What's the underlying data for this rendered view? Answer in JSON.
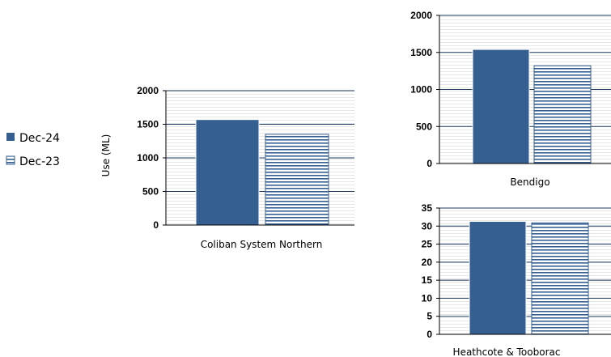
{
  "legend": {
    "placement": "left",
    "items": [
      {
        "label": "Dec-24",
        "color": "#365f91",
        "pattern": "solid"
      },
      {
        "label": "Dec-23",
        "color": "#365f91",
        "pattern": "horizontal-lines"
      }
    ]
  },
  "chart_data": [
    {
      "type": "bar",
      "title": "",
      "xlabel": "Coliban System Northern",
      "ylabel": "Use  (ML)",
      "ylim": [
        0,
        2000
      ],
      "yticks": [
        "0",
        "500",
        "1000",
        "1500",
        "2000"
      ],
      "grid": true,
      "series": [
        {
          "name": "Dec-24",
          "values": [
            1570
          ]
        },
        {
          "name": "Dec-23",
          "values": [
            1350
          ]
        }
      ]
    },
    {
      "type": "bar",
      "title": "",
      "xlabel": "Bendigo",
      "ylabel": "",
      "ylim": [
        0,
        2000
      ],
      "yticks": [
        "0",
        "500",
        "1000",
        "1500",
        "2000"
      ],
      "grid": true,
      "series": [
        {
          "name": "Dec-24",
          "values": [
            1540
          ]
        },
        {
          "name": "Dec-23",
          "values": [
            1320
          ]
        }
      ]
    },
    {
      "type": "bar",
      "title": "",
      "xlabel": "Heathcote & Tooborac",
      "ylabel": "",
      "ylim": [
        0,
        35
      ],
      "yticks": [
        "0",
        "5",
        "10",
        "15",
        "20",
        "25",
        "30",
        "35"
      ],
      "grid": true,
      "series": [
        {
          "name": "Dec-24",
          "values": [
            31.3
          ]
        },
        {
          "name": "Dec-23",
          "values": [
            30.9
          ]
        }
      ]
    }
  ]
}
